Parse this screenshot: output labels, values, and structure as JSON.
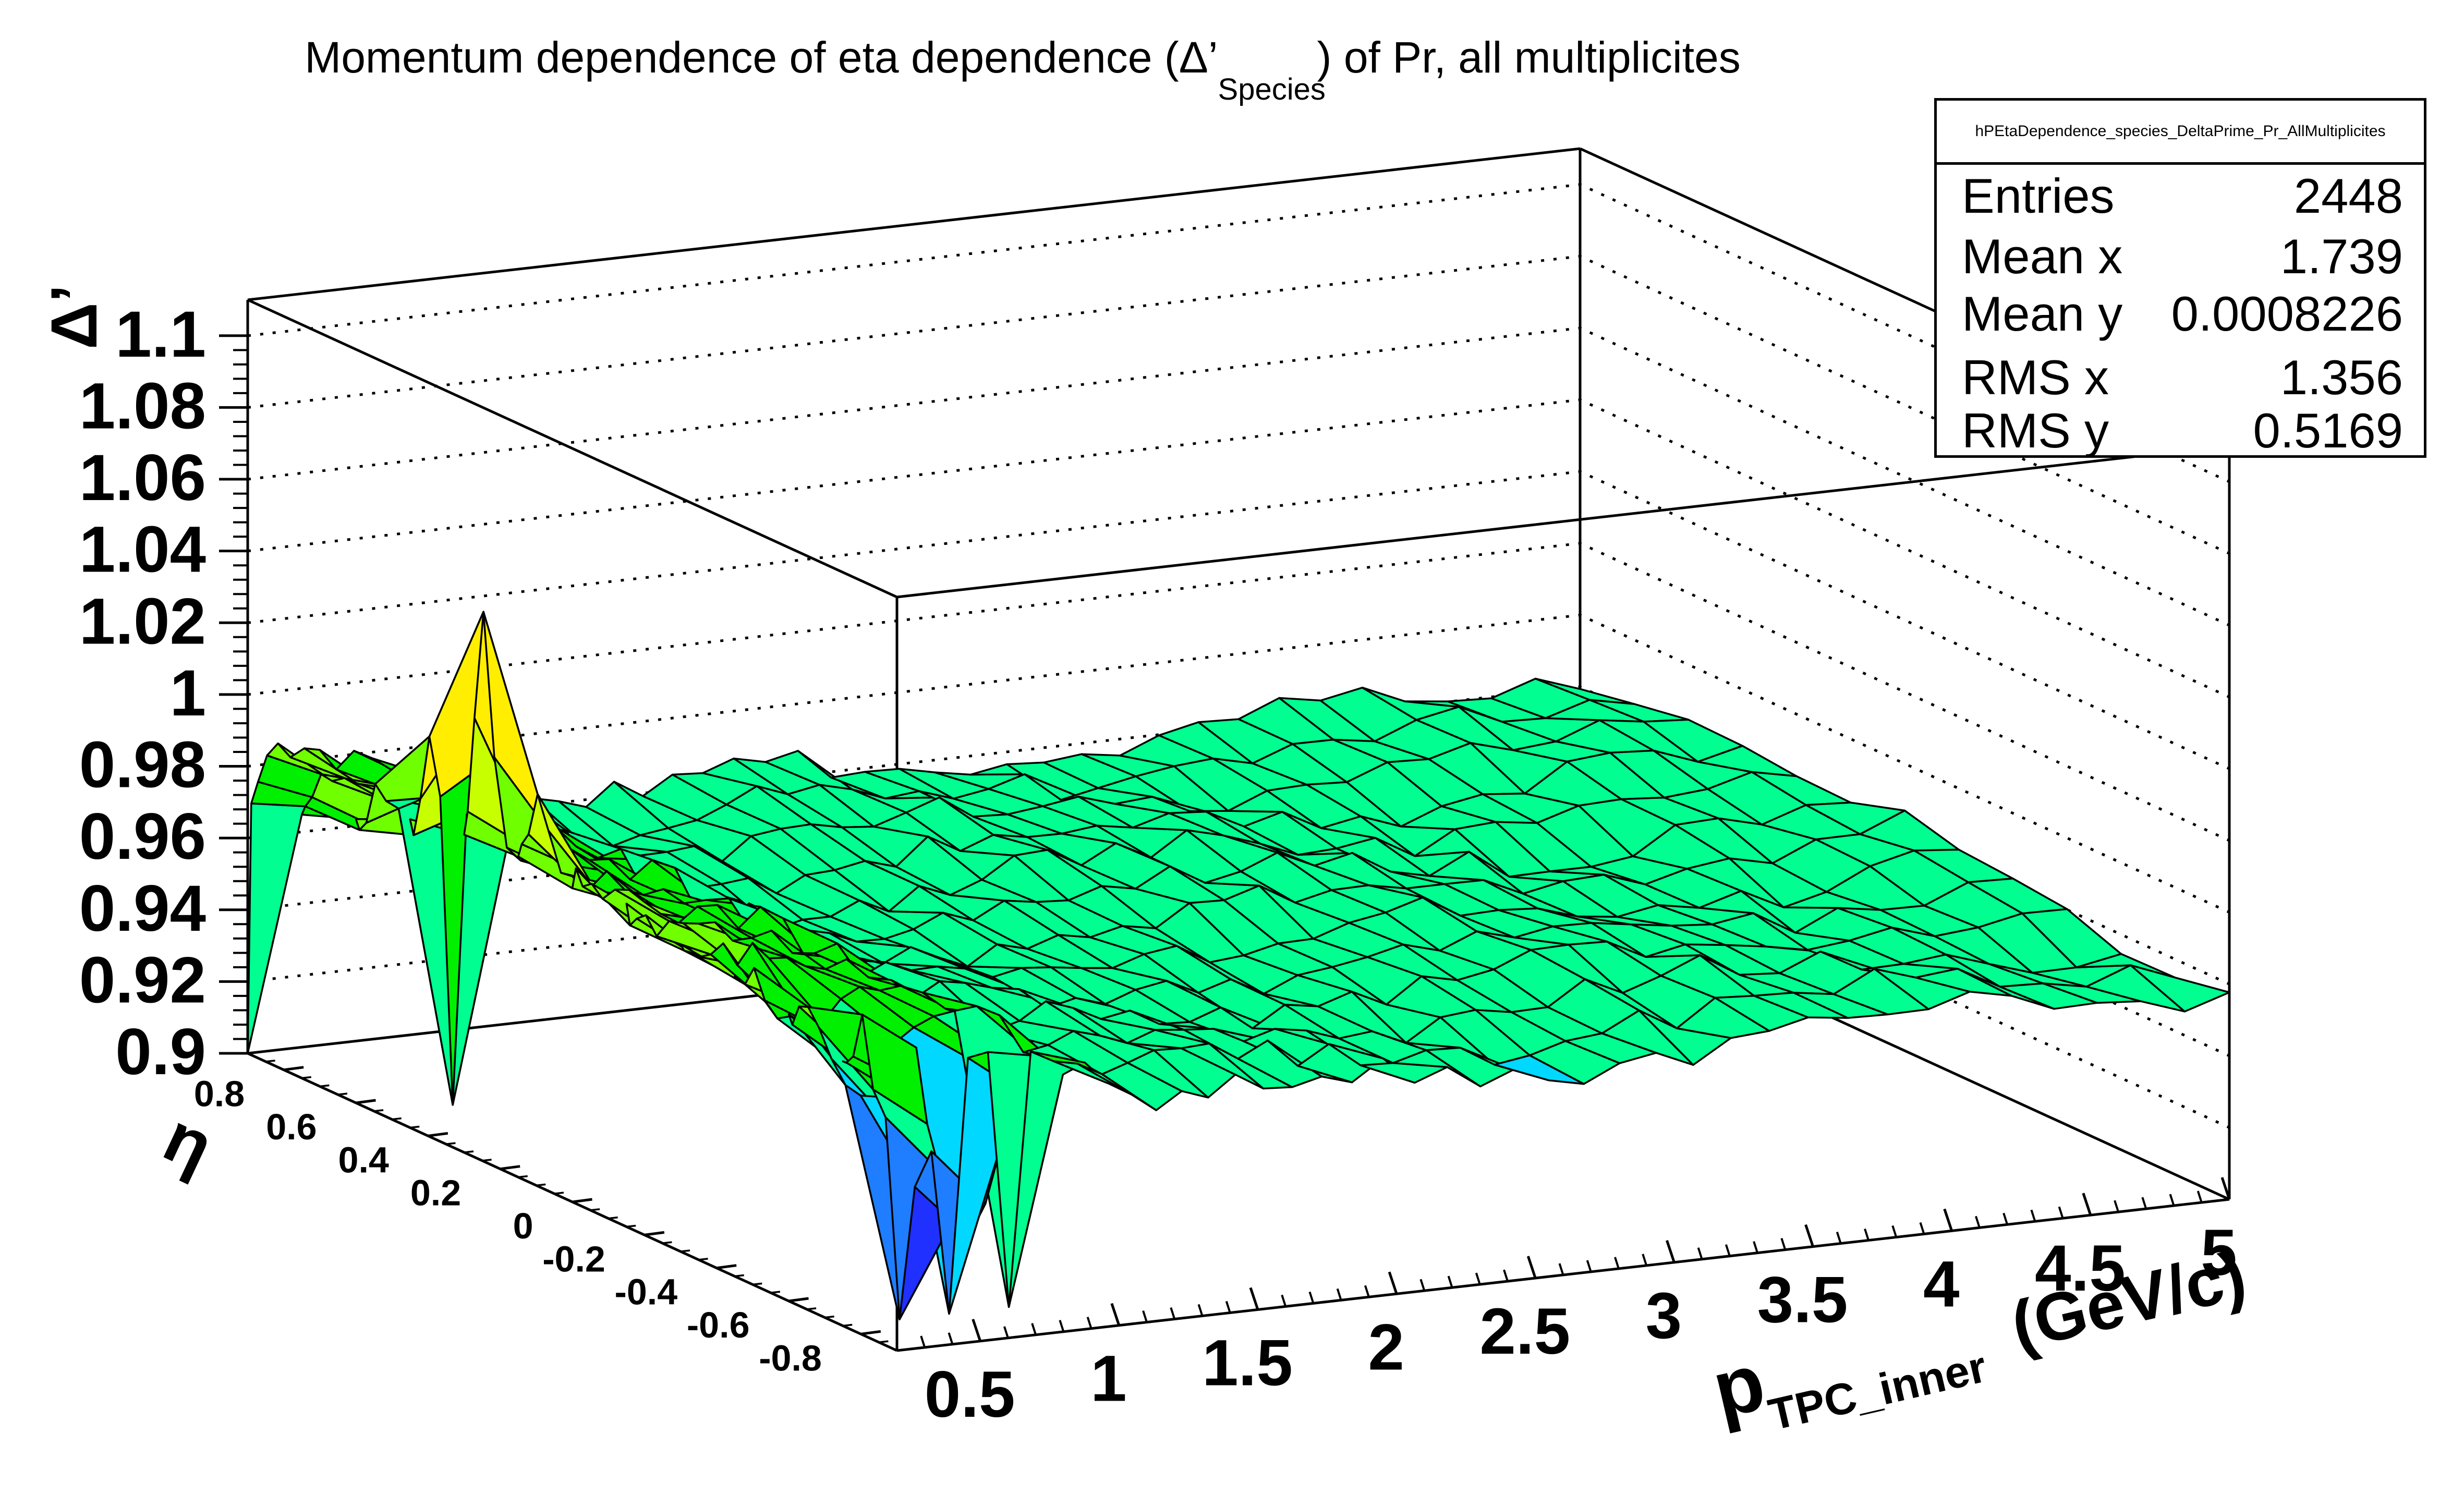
{
  "title": {
    "main": "Momentum dependence of eta dependence (Δ’",
    "sub": "Species",
    "end": ") of Pr, all multiplicites"
  },
  "stats": {
    "name": "hPEtaDependence_species_DeltaPrime_Pr_AllMultiplicites",
    "rows": [
      {
        "key": "Entries",
        "value": "2448"
      },
      {
        "key": "Mean x",
        "value": "1.739"
      },
      {
        "key": "Mean y",
        "value": "0.0008226"
      },
      {
        "key": "RMS x",
        "value": "1.356"
      },
      {
        "key": "RMS y",
        "value": "0.5169"
      }
    ]
  },
  "chart_data": {
    "type": "surface",
    "title": "Momentum dependence of eta dependence (Δ’ Species) of Pr, all multiplicites",
    "xlabel": "p",
    "xlabel_sub": "TPC_inner",
    "xlabel_unit": "(GeV/c)",
    "ylabel": "η",
    "zlabel": "Δ’",
    "xlim": [
      0.2,
      5.0
    ],
    "ylim": [
      -0.9,
      0.9
    ],
    "zlim": [
      0.9,
      1.11
    ],
    "x_ticks": [
      "0.5",
      "1",
      "1.5",
      "2",
      "2.5",
      "3",
      "3.5",
      "4",
      "4.5",
      "5"
    ],
    "y_ticks": [
      "0.8",
      "0.6",
      "0.4",
      "0.2",
      "0",
      "-0.2",
      "-0.4",
      "-0.6",
      "-0.8"
    ],
    "z_ticks": [
      "0.9",
      "0.92",
      "0.94",
      "0.96",
      "0.98",
      "1",
      "1.02",
      "1.04",
      "1.06",
      "1.08",
      "1.1"
    ],
    "grid": true,
    "palette": [
      "#5a0fd0",
      "#2030ff",
      "#1f7dff",
      "#00d8ff",
      "#00ff90",
      "#00f000",
      "#70ff00",
      "#c8ff00",
      "#ffee00",
      "#ffa000",
      "#ff4000",
      "#e00000"
    ],
    "peak": {
      "x": 0.27,
      "eta": 0.3,
      "value": 1.057
    },
    "dips": [
      {
        "x": 0.2,
        "eta": 0.85,
        "value": 0.9
      },
      {
        "x": 0.35,
        "eta": 0.45,
        "value": 0.905
      },
      {
        "x": 0.4,
        "eta": -0.8,
        "value": 0.9
      },
      {
        "x": 0.56,
        "eta": -0.8,
        "value": 0.9
      },
      {
        "x": 0.8,
        "eta": -0.8,
        "value": 0.9
      }
    ],
    "plateau": {
      "x_range": [
        1.0,
        5.0
      ],
      "value_range": [
        0.95,
        0.97
      ]
    }
  }
}
